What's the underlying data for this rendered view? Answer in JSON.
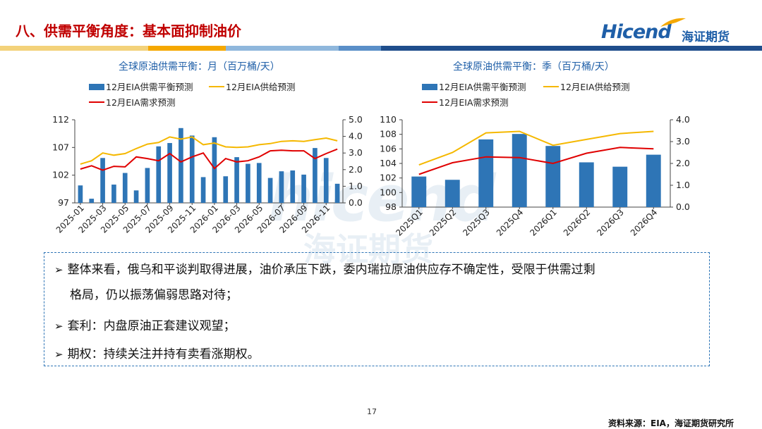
{
  "page": {
    "title": "八、供需平衡角度：基本面抑制油价",
    "logo_text": "Hicend",
    "logo_cn": "海证期货",
    "watermark_text": "hicend",
    "watermark_cn": "海证期货",
    "page_number": "17",
    "source": "资料来源：EIA，海证期货研究所"
  },
  "colors": {
    "bar": "#2e75b6",
    "supply": "#f5b800",
    "demand": "#e00000",
    "title": "#c00000"
  },
  "bullets": [
    {
      "line1": "整体来看，俄乌和平谈判取得进展，油价承压下跌，委内瑞拉原油供应存不确定性，受限于供需过剩",
      "line2": "格局，仍以振荡偏弱思路对待；"
    },
    {
      "line1": "套利：内盘原油正套建议观望；"
    },
    {
      "line1": "期权：持续关注并持有卖看涨期权。"
    }
  ],
  "chart_data": [
    {
      "type": "bar",
      "title": "全球原油供需平衡：月（百万桶/天）",
      "legend": [
        "12月EIA供需平衡预测",
        "12月EIA供给预测",
        "12月EIA需求预测"
      ],
      "left_axis": {
        "min": 97,
        "max": 112,
        "ticks": [
          97,
          102,
          107,
          112
        ]
      },
      "right_axis": {
        "min": 0,
        "max": 5,
        "ticks": [
          "0.0",
          "1.0",
          "2.0",
          "3.0",
          "4.0",
          "5.0"
        ]
      },
      "x": [
        "2025-01",
        "2025-02",
        "2025-03",
        "2025-04",
        "2025-05",
        "2025-06",
        "2025-07",
        "2025-08",
        "2025-09",
        "2025-10",
        "2025-11",
        "2025-12",
        "2026-01",
        "2026-02",
        "2026-03",
        "2026-04",
        "2026-05",
        "2026-06",
        "2026-07",
        "2026-08",
        "2026-09",
        "2026-10",
        "2026-11",
        "2026-12"
      ],
      "x_tick_labels": [
        "2025-01",
        "2025-03",
        "2025-05",
        "2025-07",
        "2025-09",
        "2025-11",
        "2026-01",
        "2026-03",
        "2026-05",
        "2026-07",
        "2026-09",
        "2026-11"
      ],
      "series": [
        {
          "name": "12月EIA供需平衡预测",
          "axis": "right",
          "kind": "bar",
          "values": [
            1.05,
            0.25,
            2.7,
            1.1,
            1.8,
            0.75,
            2.1,
            3.4,
            3.6,
            4.5,
            4.05,
            1.55,
            3.95,
            1.6,
            2.75,
            2.35,
            2.4,
            1.5,
            1.9,
            1.95,
            1.7,
            3.3,
            2.7,
            1.15
          ]
        },
        {
          "name": "12月EIA供给预测",
          "axis": "left",
          "kind": "line",
          "values": [
            104.0,
            104.6,
            106.0,
            105.6,
            105.9,
            106.8,
            107.6,
            107.9,
            108.9,
            108.5,
            108.9,
            107.5,
            107.8,
            107.1,
            107.0,
            107.1,
            107.5,
            107.7,
            108.1,
            108.2,
            108.1,
            108.4,
            108.7,
            108.2
          ]
        },
        {
          "name": "12月EIA需求预测",
          "axis": "left",
          "kind": "line",
          "values": [
            103.1,
            103.7,
            102.9,
            103.6,
            103.5,
            105.3,
            105.0,
            104.6,
            105.9,
            104.4,
            105.3,
            106.0,
            103.2,
            105.0,
            104.4,
            104.6,
            105.3,
            106.4,
            106.5,
            106.4,
            106.4,
            105.0,
            105.9,
            106.7
          ]
        }
      ]
    },
    {
      "type": "bar",
      "title": "全球原油供需平衡：季（百万桶/天）",
      "legend": [
        "12月EIA供需平衡预测",
        "12月EIA供给预测",
        "12月EIA需求预测"
      ],
      "left_axis": {
        "min": 98,
        "max": 110,
        "ticks": [
          98,
          100,
          102,
          104,
          106,
          108,
          110
        ]
      },
      "right_axis": {
        "min": 0,
        "max": 4,
        "ticks": [
          "0.0",
          "1.0",
          "2.0",
          "3.0",
          "4.0"
        ]
      },
      "x": [
        "2025Q1",
        "2025Q2",
        "2025Q3",
        "2025Q4",
        "2026Q1",
        "2026Q2",
        "2026Q3",
        "2026Q4"
      ],
      "x_tick_labels": [
        "2025Q1",
        "2025Q2",
        "2025Q3",
        "2025Q4",
        "2026Q1",
        "2026Q2",
        "2026Q3",
        "2026Q4"
      ],
      "series": [
        {
          "name": "12月EIA供需平衡预测",
          "axis": "right",
          "kind": "bar",
          "values": [
            1.4,
            1.25,
            3.1,
            3.35,
            2.8,
            2.05,
            1.85,
            2.4
          ]
        },
        {
          "name": "12月EIA供给预测",
          "axis": "left",
          "kind": "line",
          "values": [
            103.8,
            105.5,
            108.2,
            108.4,
            106.5,
            107.3,
            108.1,
            108.4
          ]
        },
        {
          "name": "12月EIA需求预测",
          "axis": "left",
          "kind": "line",
          "values": [
            102.5,
            104.1,
            104.9,
            104.8,
            104.0,
            105.4,
            106.2,
            106.0
          ]
        }
      ]
    }
  ]
}
